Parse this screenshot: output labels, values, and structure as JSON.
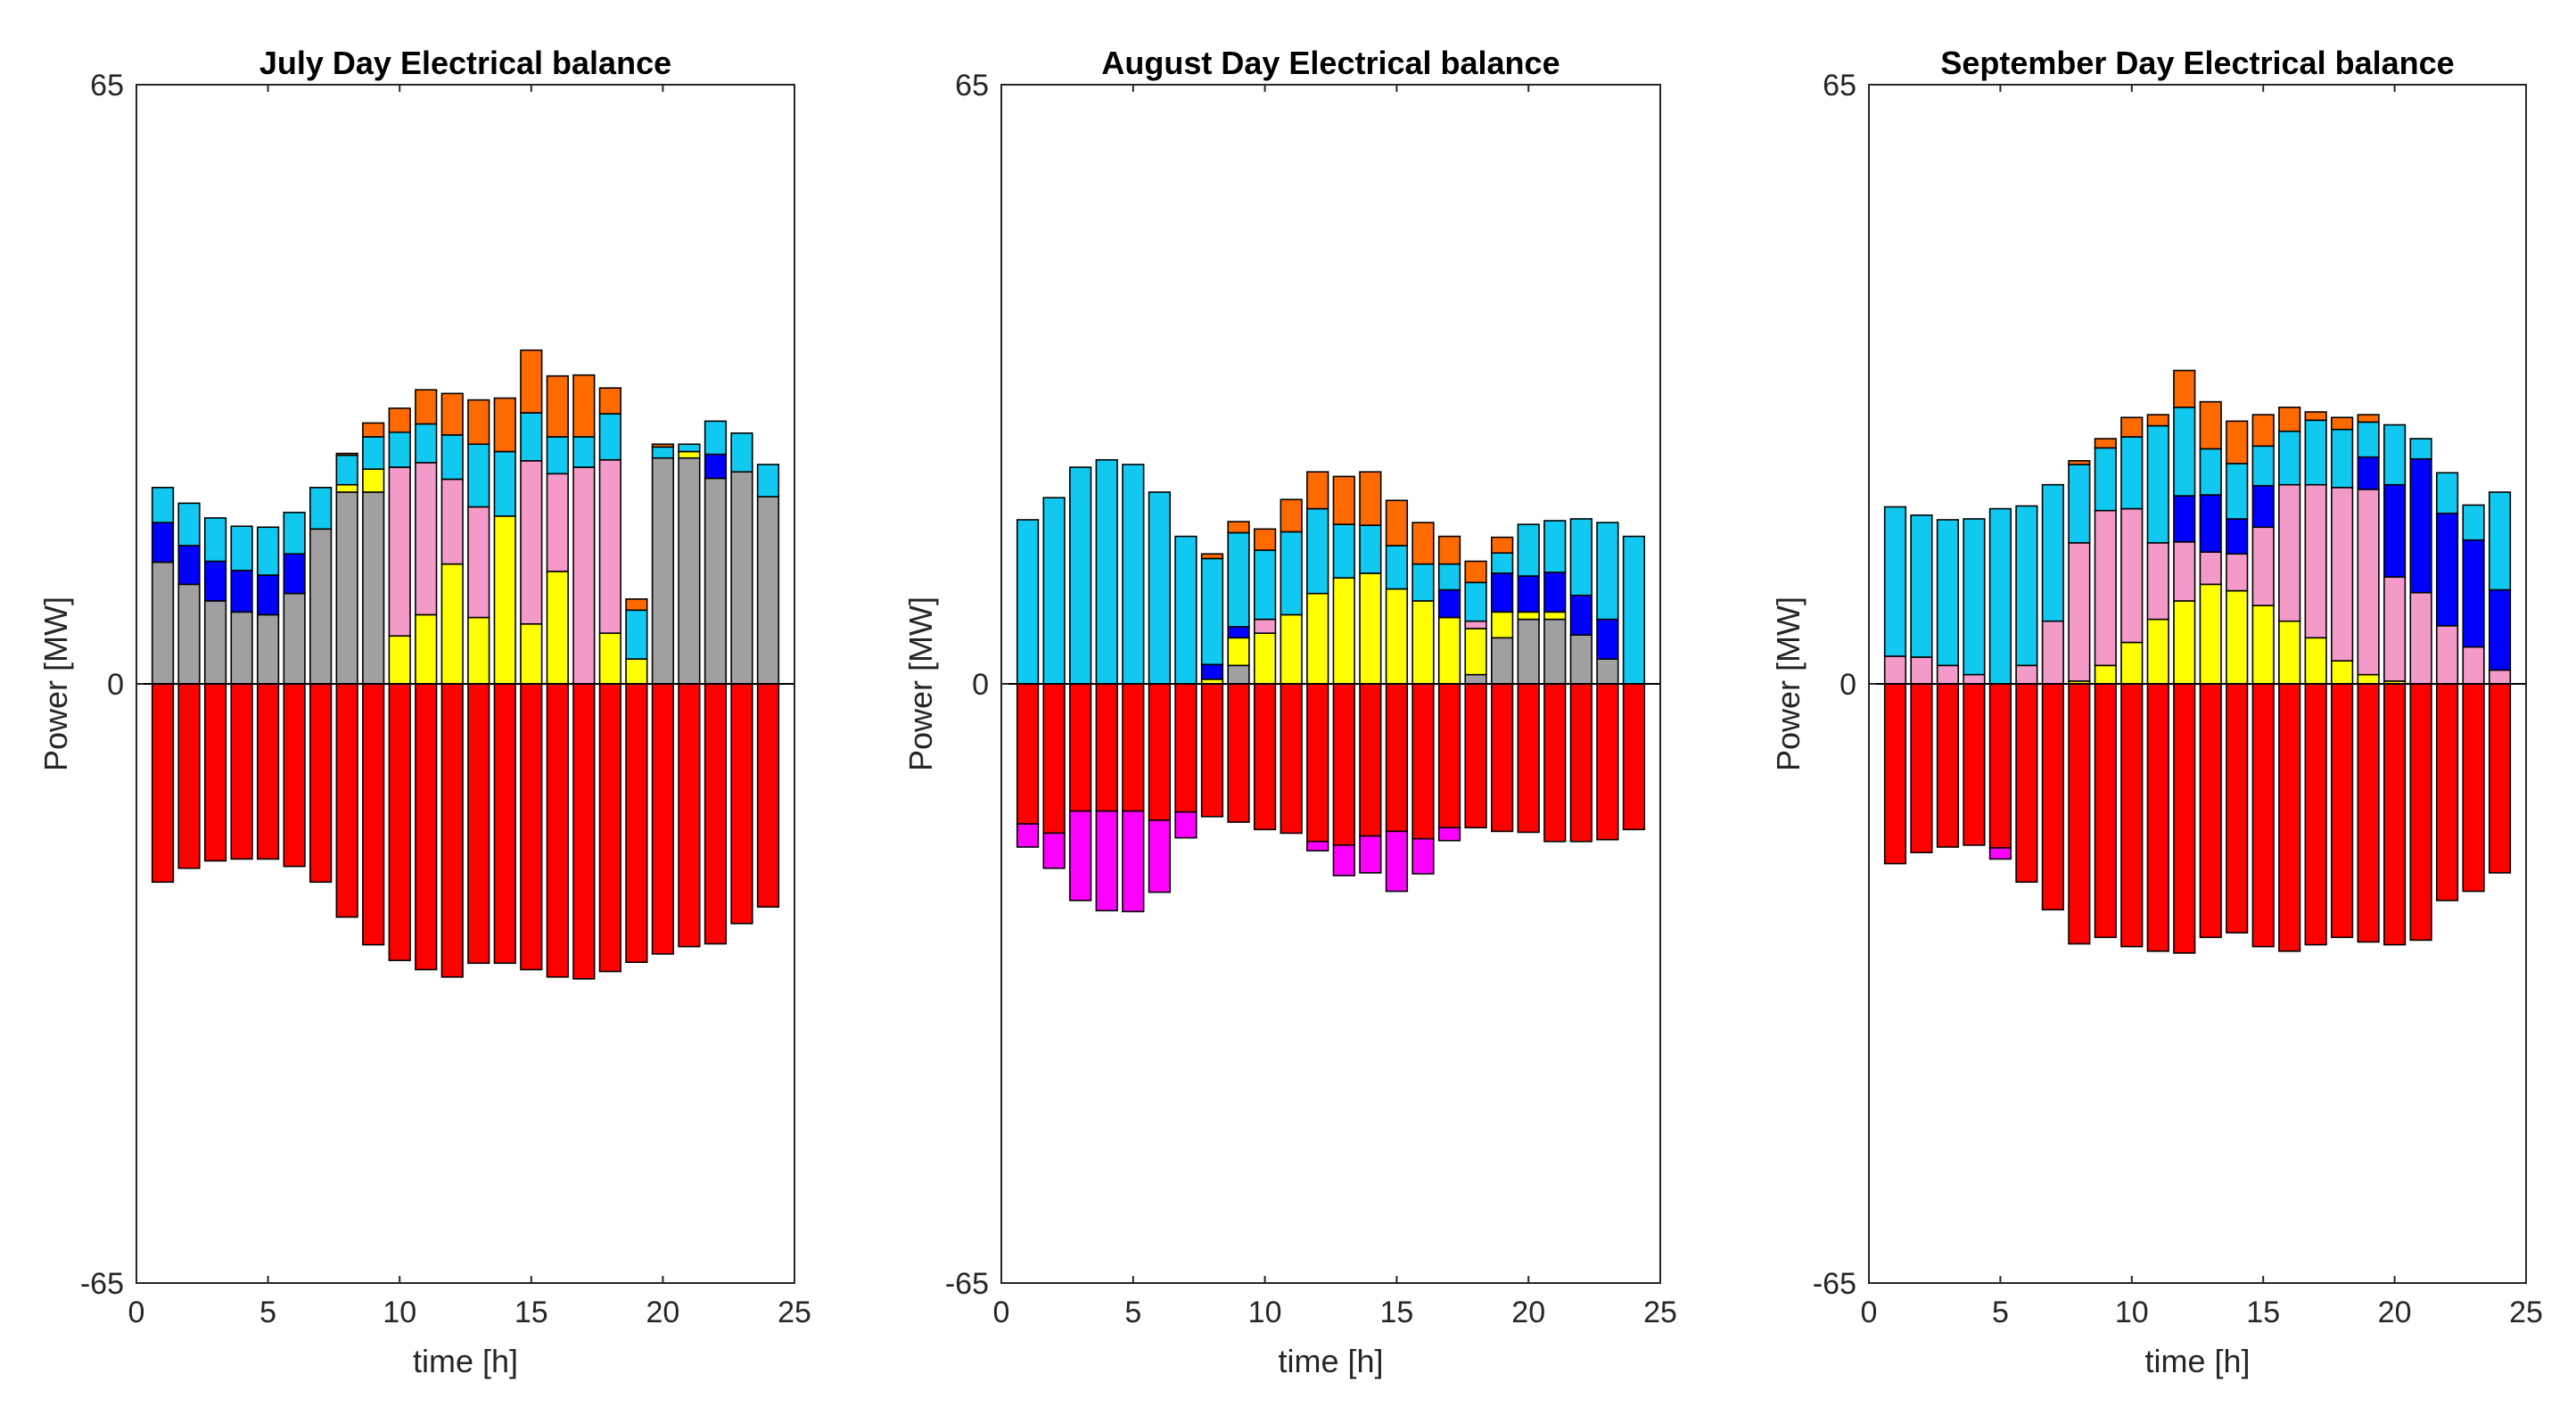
{
  "chart_data": [
    {
      "type": "bar",
      "stacked": true,
      "title": "July Day Electrical balance",
      "xlabel": "time [h]",
      "ylabel": "Power [MW]",
      "xlim": [
        0,
        25
      ],
      "ylim": [
        -65,
        65
      ],
      "xticks": [
        "0",
        "5",
        "10",
        "15",
        "20",
        "25"
      ],
      "yticks": [
        "-65",
        "0",
        "65"
      ],
      "x": [
        1,
        2,
        3,
        4,
        5,
        6,
        7,
        8,
        9,
        10,
        11,
        12,
        13,
        14,
        15,
        16,
        17,
        18,
        19,
        20,
        21,
        22,
        23,
        24
      ],
      "positive_series": [
        {
          "name": "grey",
          "color": "#a0a0a0",
          "values": [
            13.2,
            10.8,
            9,
            7.8,
            7.5,
            9.8,
            16.8,
            20.8,
            20.8,
            0,
            0,
            0,
            0,
            0,
            0,
            0,
            0,
            0,
            0,
            24.5,
            24.5,
            22.3,
            23,
            20.3
          ]
        },
        {
          "name": "yellow",
          "color": "#ffff00",
          "values": [
            0,
            0,
            0,
            0,
            0,
            0,
            0,
            0.8,
            2.5,
            5.2,
            7.5,
            13,
            7.2,
            18.2,
            6.5,
            12.2,
            0,
            5.5,
            2.7,
            0,
            0.7,
            0,
            0,
            0
          ]
        },
        {
          "name": "pink",
          "color": "#f49ac8",
          "values": [
            0,
            0,
            0,
            0,
            0,
            0,
            0,
            0,
            0,
            18.3,
            16.5,
            9.2,
            12,
            0,
            17.7,
            10.6,
            23.5,
            18.8,
            0,
            0,
            0,
            0,
            0,
            0
          ]
        },
        {
          "name": "blue",
          "color": "#0000ff",
          "values": [
            4.3,
            4.2,
            4.3,
            4.5,
            4.3,
            4.3,
            0,
            0,
            0,
            0,
            0,
            0,
            0,
            0,
            0,
            0,
            0,
            0,
            0,
            0,
            0,
            2.6,
            0,
            0
          ]
        },
        {
          "name": "cyan",
          "color": "#10c8f0",
          "values": [
            3.8,
            4.6,
            4.7,
            4.8,
            5.2,
            4.5,
            4.5,
            3.2,
            3.5,
            3.8,
            4.2,
            4.8,
            6.8,
            7,
            5.2,
            4,
            3.3,
            5,
            5.3,
            1.2,
            0.8,
            3.6,
            4.2,
            3.5
          ]
        },
        {
          "name": "orange",
          "color": "#ff6a00",
          "values": [
            0,
            0,
            0,
            0,
            0,
            0,
            0,
            0.2,
            1.5,
            2.6,
            3.7,
            4.5,
            4.8,
            5.8,
            6.8,
            6.6,
            6.7,
            2.8,
            1.2,
            0.3,
            0,
            0,
            0,
            0
          ]
        }
      ],
      "negative_series": [
        {
          "name": "red",
          "color": "#ff0000",
          "values": [
            -21.5,
            -20,
            -19.2,
            -19,
            -19,
            -19.8,
            -21.5,
            -25.3,
            -28.3,
            -30,
            -31,
            -31.8,
            -30.3,
            -30.3,
            -31,
            -31.8,
            -32,
            -31.2,
            -30.2,
            -29.3,
            -28.5,
            -28.2,
            -26,
            -24.2
          ]
        },
        {
          "name": "magenta",
          "color": "#ff00ff",
          "values": [
            0,
            0,
            0,
            0,
            0,
            0,
            0,
            0,
            0,
            0,
            0,
            0,
            0,
            0,
            0,
            0,
            0,
            0,
            0,
            0,
            0,
            0,
            0,
            0
          ]
        }
      ]
    },
    {
      "type": "bar",
      "stacked": true,
      "title": "August Day Electrical balance",
      "xlabel": "time [h]",
      "ylabel": "Power [MW]",
      "xlim": [
        0,
        25
      ],
      "ylim": [
        -65,
        65
      ],
      "xticks": [
        "0",
        "5",
        "10",
        "15",
        "20",
        "25"
      ],
      "yticks": [
        "-65",
        "0",
        "65"
      ],
      "x": [
        1,
        2,
        3,
        4,
        5,
        6,
        7,
        8,
        9,
        10,
        11,
        12,
        13,
        14,
        15,
        16,
        17,
        18,
        19,
        20,
        21,
        22,
        23,
        24
      ],
      "positive_series": [
        {
          "name": "grey",
          "color": "#a0a0a0",
          "values": [
            0,
            0,
            0,
            0,
            0,
            0,
            0,
            0,
            2,
            0,
            0,
            0,
            0,
            0,
            0,
            0,
            0,
            1,
            5,
            7,
            7,
            5.3,
            2.7,
            0
          ]
        },
        {
          "name": "yellow",
          "color": "#ffff00",
          "values": [
            0,
            0,
            0,
            0,
            0,
            0,
            0,
            0.5,
            3,
            5.5,
            7.5,
            9.8,
            11.5,
            12,
            10.3,
            9,
            7.2,
            5,
            2.8,
            0.8,
            0.8,
            0,
            0,
            0
          ]
        },
        {
          "name": "pink",
          "color": "#f49ac8",
          "values": [
            0,
            0,
            0,
            0,
            0,
            0,
            0,
            0,
            0,
            1.5,
            0,
            0,
            0,
            0,
            0,
            0,
            0,
            0.8,
            0,
            0,
            0,
            0,
            0,
            0
          ]
        },
        {
          "name": "blue",
          "color": "#0000ff",
          "values": [
            0,
            0,
            0,
            0,
            0,
            0,
            0,
            1.6,
            1.2,
            0,
            0,
            0,
            0,
            0,
            0,
            0,
            3,
            0,
            4.2,
            3.9,
            4.3,
            4.3,
            4.3,
            0
          ]
        },
        {
          "name": "cyan",
          "color": "#10c8f0",
          "values": [
            17.8,
            20.2,
            23.5,
            24.3,
            23.8,
            20.8,
            16,
            11.5,
            10.2,
            7.5,
            9,
            9.2,
            5.8,
            5.2,
            4.7,
            4,
            2.8,
            4.2,
            2.2,
            5.6,
            5.6,
            8.3,
            10.5,
            16
          ]
        },
        {
          "name": "orange",
          "color": "#ff6a00",
          "values": [
            0,
            0,
            0,
            0,
            0,
            0,
            0,
            0.5,
            1.2,
            2.3,
            3.5,
            4,
            5.2,
            5.8,
            4.9,
            4.5,
            3,
            2.3,
            1.7,
            0,
            0,
            0,
            0,
            0
          ]
        }
      ],
      "negative_series": [
        {
          "name": "red",
          "color": "#ff0000",
          "values": [
            -15.2,
            -16.2,
            -13.8,
            -13.8,
            -13.8,
            -14.8,
            -13.9,
            -14.4,
            -15,
            -15.8,
            -16.2,
            -17.1,
            -17.5,
            -16.5,
            -16,
            -16.8,
            -15.6,
            -15.6,
            -16,
            -16.1,
            -17.1,
            -17.1,
            -16.9,
            -15.8
          ]
        },
        {
          "name": "magenta",
          "color": "#ff00ff",
          "values": [
            -2.5,
            -3.8,
            -9.7,
            -10.8,
            -10.9,
            -7.8,
            -2.8,
            0,
            0,
            0,
            0,
            -1,
            -3.3,
            -4,
            -6.5,
            -3.8,
            -1.4,
            0,
            0,
            0,
            0,
            0,
            0,
            0
          ]
        }
      ]
    },
    {
      "type": "bar",
      "stacked": true,
      "title": "September Day Electrical balance",
      "xlabel": "time [h]",
      "ylabel": "Power [MW]",
      "xlim": [
        0,
        25
      ],
      "ylim": [
        -65,
        65
      ],
      "xticks": [
        "0",
        "5",
        "10",
        "15",
        "20",
        "25"
      ],
      "yticks": [
        "-65",
        "0",
        "65"
      ],
      "x": [
        1,
        2,
        3,
        4,
        5,
        6,
        7,
        8,
        9,
        10,
        11,
        12,
        13,
        14,
        15,
        16,
        17,
        18,
        19,
        20,
        21,
        22,
        23,
        24
      ],
      "positive_series": [
        {
          "name": "grey",
          "color": "#a0a0a0",
          "values": [
            0,
            0,
            0,
            0,
            0,
            0,
            0,
            0,
            0,
            0,
            0,
            0,
            0,
            0,
            0,
            0,
            0,
            0,
            0,
            0,
            0,
            0,
            0,
            0
          ]
        },
        {
          "name": "yellow",
          "color": "#ffff00",
          "values": [
            0,
            0,
            0,
            0,
            0,
            0,
            0,
            0.3,
            2,
            4.5,
            7,
            9,
            10.8,
            10.1,
            8.5,
            6.8,
            5,
            2.5,
            1,
            0.3,
            0,
            0,
            0,
            0
          ]
        },
        {
          "name": "pink",
          "color": "#f49ac8",
          "values": [
            3,
            2.9,
            2,
            1,
            0,
            2,
            6.8,
            15,
            16.8,
            14.5,
            8.3,
            6.4,
            3.5,
            4,
            8.5,
            14.8,
            16.6,
            18.8,
            20.1,
            11.3,
            9.9,
            6.3,
            4,
            1.5
          ]
        },
        {
          "name": "blue",
          "color": "#0000ff",
          "values": [
            0,
            0,
            0,
            0,
            0,
            0,
            0,
            0,
            0,
            0,
            0,
            5,
            6.2,
            3.8,
            4.5,
            0,
            0,
            0,
            3.5,
            10,
            14.5,
            12.2,
            11.6,
            8.7
          ]
        },
        {
          "name": "cyan",
          "color": "#10c8f0",
          "values": [
            16.2,
            15.4,
            15.8,
            16.9,
            19,
            17.3,
            14.8,
            8.5,
            6.8,
            7.8,
            12.7,
            9.6,
            5,
            6,
            4.3,
            5.8,
            7,
            6.3,
            3.8,
            6.5,
            2.2,
            4.4,
            3.8,
            10.6
          ]
        },
        {
          "name": "orange",
          "color": "#ff6a00",
          "values": [
            0,
            0,
            0,
            0,
            0,
            0,
            0,
            0.4,
            1,
            2.1,
            1.2,
            4,
            5.1,
            4.6,
            3.4,
            2.6,
            0.9,
            1.3,
            0.8,
            0,
            0,
            0,
            0,
            0
          ]
        }
      ],
      "negative_series": [
        {
          "name": "red",
          "color": "#ff0000",
          "values": [
            -19.5,
            -18.3,
            -17.7,
            -17.5,
            -17.8,
            -21.5,
            -24.5,
            -28.2,
            -27.5,
            -28.5,
            -29,
            -29.2,
            -27.5,
            -27,
            -28.5,
            -29,
            -28.3,
            -27.5,
            -28,
            -28.3,
            -27.8,
            -23.5,
            -22.5,
            -20.5
          ]
        },
        {
          "name": "magenta",
          "color": "#ff00ff",
          "values": [
            0,
            0,
            0,
            0,
            -1.2,
            0,
            0,
            0,
            0,
            0,
            0,
            0,
            0,
            0,
            0,
            0,
            0,
            0,
            0,
            0,
            0,
            0,
            0,
            0
          ]
        }
      ]
    }
  ]
}
